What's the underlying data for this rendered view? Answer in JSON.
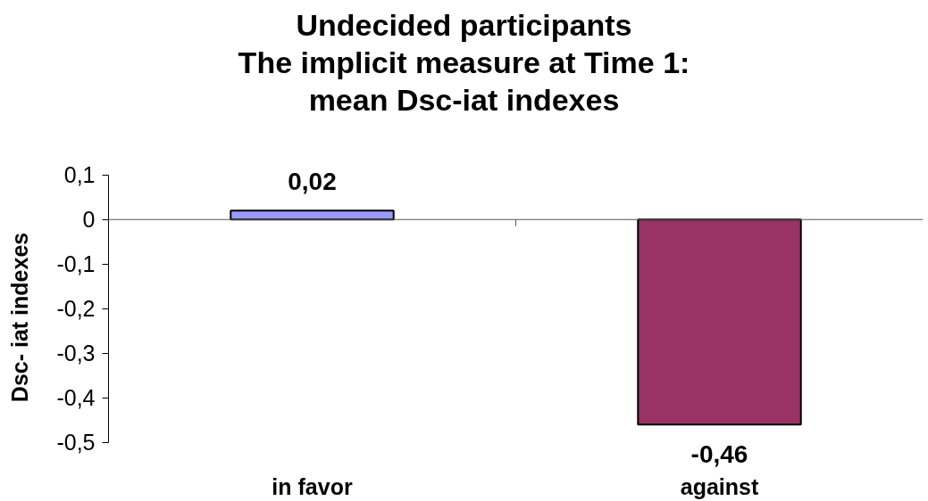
{
  "chart_data": {
    "type": "bar",
    "title": "Undecided participants\nThe implicit measure at Time 1:\nmean Dsc-iat indexes",
    "ylabel": "Dsc- iat indexes",
    "categories": [
      "in favor",
      "against"
    ],
    "values": [
      0.02,
      -0.46
    ],
    "colors": [
      "#9999ff",
      "#993366"
    ],
    "value_labels": [
      "0,02",
      "-0,46"
    ],
    "ylim": [
      -0.5,
      0.1
    ],
    "yticks": [
      {
        "value": 0.1,
        "label": "0,1"
      },
      0,
      {
        "value": -0.1,
        "label": "-0,1"
      },
      {
        "value": -0.2,
        "label": "-0,2"
      },
      {
        "value": -0.3,
        "label": "-0,3"
      },
      {
        "value": -0.4,
        "label": "-0,4"
      },
      {
        "value": -0.5,
        "label": "-0,5"
      }
    ],
    "ref_lines": [
      {
        "axis": "y",
        "value": 0,
        "color": "#555555"
      }
    ],
    "grid": false
  }
}
